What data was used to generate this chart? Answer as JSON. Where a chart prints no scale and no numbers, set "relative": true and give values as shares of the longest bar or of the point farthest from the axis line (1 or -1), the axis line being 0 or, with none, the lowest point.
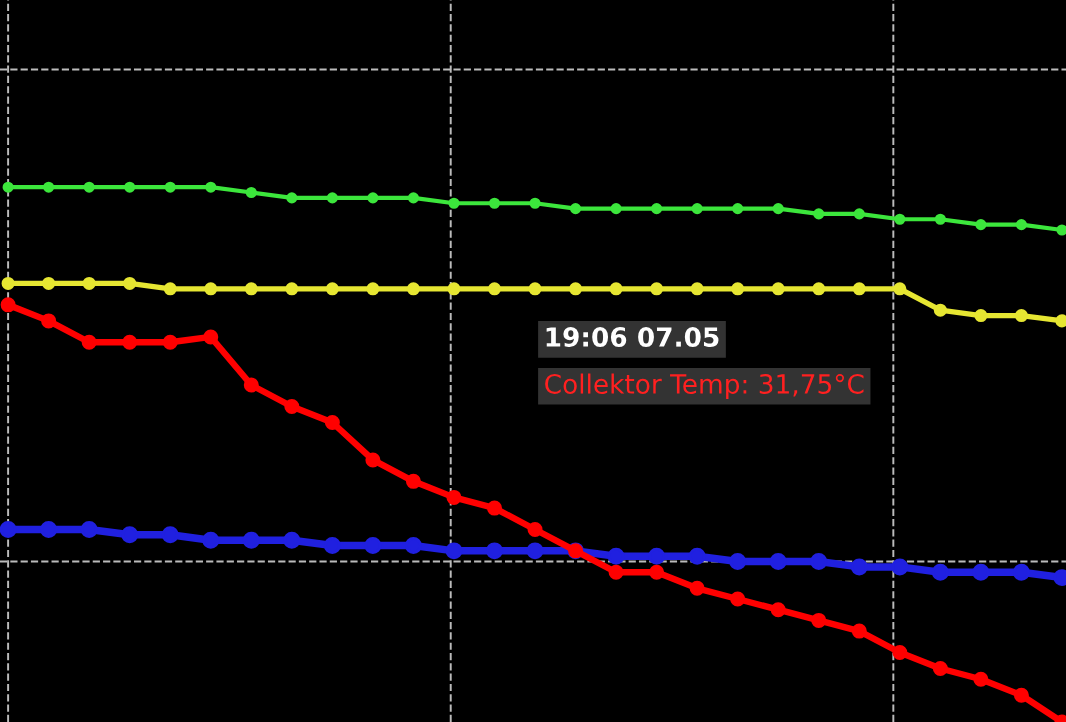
{
  "chart_data": {
    "type": "line",
    "relative": true,
    "grid": true,
    "marker": "circle",
    "line_style": "solid",
    "categories": [
      null,
      null,
      null,
      null,
      null,
      null,
      null,
      null,
      null,
      null,
      null,
      null,
      null,
      null,
      null,
      null,
      null,
      null,
      null,
      null,
      null,
      null,
      null,
      null,
      null,
      null,
      null
    ],
    "series": [
      {
        "color": "#3ce63c",
        "values": [
          1.0,
          1.0,
          1.0,
          1.0,
          1.0,
          1.0,
          0.99,
          0.98,
          0.98,
          0.98,
          0.98,
          0.97,
          0.97,
          0.97,
          0.96,
          0.96,
          0.96,
          0.96,
          0.96,
          0.96,
          0.95,
          0.95,
          0.94,
          0.94,
          0.93,
          0.93,
          0.92
        ]
      },
      {
        "color": "#e6e632",
        "values": [
          0.82,
          0.82,
          0.82,
          0.82,
          0.81,
          0.81,
          0.81,
          0.81,
          0.81,
          0.81,
          0.81,
          0.81,
          0.81,
          0.81,
          0.81,
          0.81,
          0.81,
          0.81,
          0.81,
          0.81,
          0.81,
          0.81,
          0.81,
          0.77,
          0.76,
          0.76,
          0.75
        ]
      },
      {
        "color": "#ff0000",
        "values": [
          0.78,
          0.75,
          0.71,
          0.71,
          0.71,
          0.72,
          0.63,
          0.59,
          0.56,
          0.49,
          0.45,
          0.42,
          0.4,
          0.36,
          0.32,
          0.28,
          0.28,
          0.25,
          0.23,
          0.21,
          0.19,
          0.17,
          0.13,
          0.1,
          0.08,
          0.05,
          0.0
        ]
      },
      {
        "color": "#2020e0",
        "values": [
          0.36,
          0.36,
          0.36,
          0.35,
          0.35,
          0.34,
          0.34,
          0.34,
          0.33,
          0.33,
          0.33,
          0.32,
          0.32,
          0.32,
          0.32,
          0.31,
          0.31,
          0.31,
          0.3,
          0.3,
          0.3,
          0.29,
          0.29,
          0.28,
          0.28,
          0.28,
          0.27
        ]
      }
    ],
    "annotations": [
      "19:06 07.05",
      "Collektor Temp: 31,75°C"
    ]
  }
}
